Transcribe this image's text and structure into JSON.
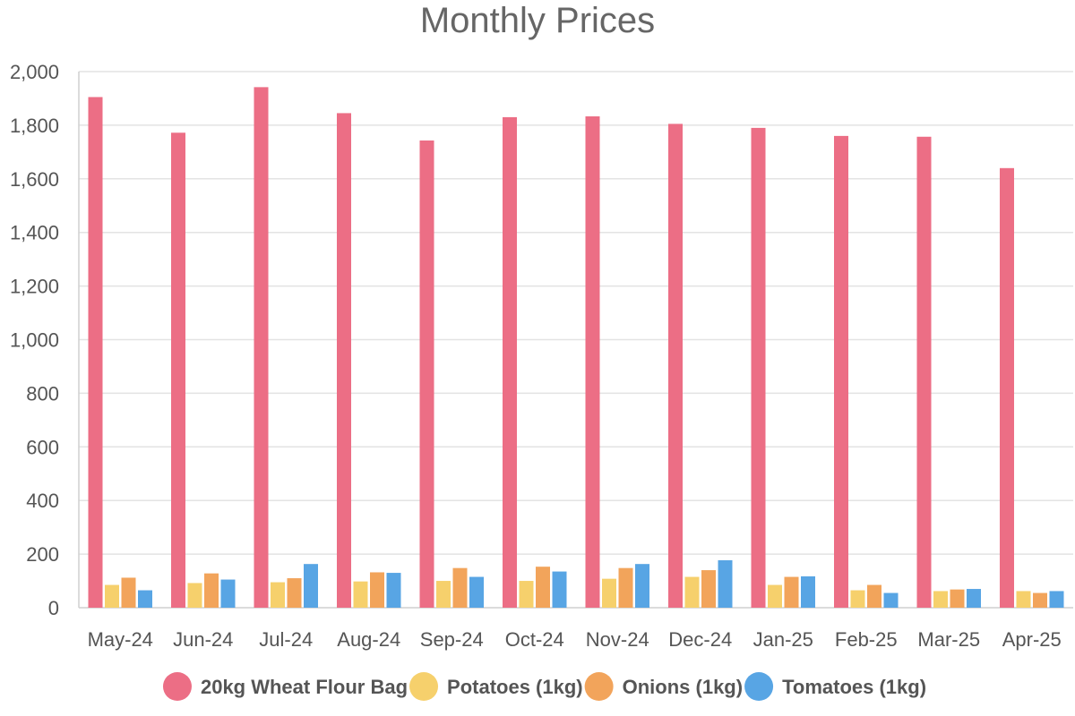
{
  "chart_data": {
    "type": "bar",
    "title": "Monthly Prices",
    "categories": [
      "May-24",
      "Jun-24",
      "Jul-24",
      "Aug-24",
      "Sep-24",
      "Oct-24",
      "Nov-24",
      "Dec-24",
      "Jan-25",
      "Feb-25",
      "Mar-25",
      "Apr-25"
    ],
    "series": [
      {
        "name": "20kg Wheat Flour Bag",
        "color": "#ec6e85",
        "values": [
          1905,
          1772,
          1942,
          1845,
          1743,
          1830,
          1833,
          1805,
          1790,
          1760,
          1757,
          1640
        ]
      },
      {
        "name": "Potatoes (1kg)",
        "color": "#f6d06c",
        "values": [
          85,
          92,
          95,
          98,
          100,
          100,
          108,
          115,
          85,
          65,
          62,
          62
        ]
      },
      {
        "name": "Onions (1kg)",
        "color": "#f2a45b",
        "values": [
          112,
          128,
          110,
          132,
          148,
          153,
          148,
          140,
          115,
          85,
          68,
          55
        ]
      },
      {
        "name": "Tomatoes (1kg)",
        "color": "#58a5e4",
        "values": [
          65,
          105,
          163,
          130,
          115,
          135,
          163,
          177,
          117,
          55,
          70,
          62
        ]
      }
    ],
    "ylim": [
      0,
      2000
    ],
    "yticks": [
      "0",
      "200",
      "400",
      "600",
      "800",
      "1,000",
      "1,200",
      "1,400",
      "1,600",
      "1,800",
      "2,000"
    ],
    "ytick_values": [
      0,
      200,
      400,
      600,
      800,
      1000,
      1200,
      1400,
      1600,
      1800,
      2000
    ],
    "grid": true,
    "legend_position": "bottom"
  }
}
